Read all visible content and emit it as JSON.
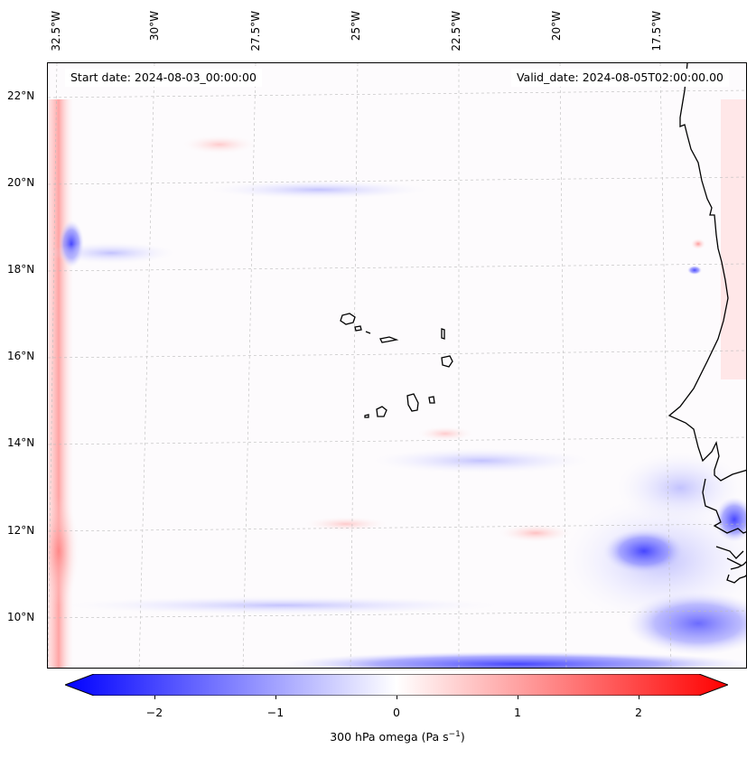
{
  "map": {
    "start_date": "Start date: 2024-08-03_00:00:00",
    "valid_date": "Valid_date: 2024-08-05T02:00:00.00",
    "lon_labels": [
      "32.5°W",
      "30°W",
      "27.5°W",
      "25°W",
      "22.5°W",
      "20°W",
      "17.5°W"
    ],
    "lat_labels": [
      "22°N",
      "20°N",
      "18°N",
      "16°N",
      "14°N",
      "12°N",
      "10°N"
    ],
    "lon_range_deg": [
      -32.8,
      -15.0
    ],
    "lat_range_deg": [
      8.9,
      22.8
    ],
    "islands_name": "Cabo Verde islands",
    "coast_name": "West African coastline"
  },
  "colorbar": {
    "ticks": [
      "−2",
      "−1",
      "0",
      "1",
      "2"
    ],
    "tick_values": [
      -2,
      -1,
      0,
      1,
      2
    ],
    "range": [
      -2.5,
      2.5
    ],
    "label_main": "300 hPa omega (Pa s",
    "label_sup": "−1",
    "label_end": ")",
    "cmap_low": "#0000ff",
    "cmap_mid": "#ffffff",
    "cmap_high": "#ff0000"
  }
}
